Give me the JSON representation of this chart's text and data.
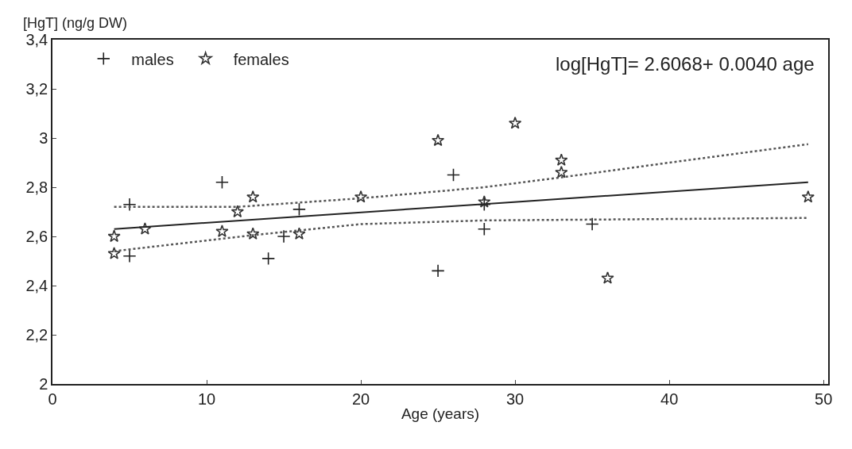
{
  "chart_data": {
    "type": "scatter",
    "xlabel": "Age (years)",
    "ylabel": "[HgT] (ng/g DW)",
    "annotations": [
      "log[HgT]= 2.6068+ 0.0040 age"
    ],
    "xlim": [
      0,
      50.3
    ],
    "xticks": [
      0,
      10,
      20,
      30,
      40,
      50
    ],
    "ylim": [
      2,
      3.4
    ],
    "yticks": [
      2,
      {
        "value": 2.2,
        "label": "2,2"
      },
      {
        "value": 2.4,
        "label": "2,4"
      },
      {
        "value": 2.6,
        "label": "2,6"
      },
      {
        "value": 2.8,
        "label": "2,8"
      },
      3,
      {
        "value": 3.2,
        "label": "3,2"
      },
      {
        "value": 3.4,
        "label": "3,4"
      }
    ],
    "legend": "top left",
    "series": [
      {
        "name": "males",
        "marker": "cross",
        "color": "#222222",
        "x": [
          5,
          5,
          11,
          14,
          15,
          16,
          25,
          26,
          28,
          28,
          35
        ],
        "values": [
          2.73,
          2.52,
          2.82,
          2.51,
          2.6,
          2.71,
          2.46,
          2.85,
          2.63,
          2.73,
          2.65
        ]
      },
      {
        "name": "females",
        "marker": "star",
        "color": "#333333",
        "x": [
          4,
          4,
          6,
          11,
          12,
          13,
          13,
          16,
          20,
          25,
          28,
          30,
          33,
          33,
          36,
          49
        ],
        "values": [
          2.6,
          2.53,
          2.63,
          2.62,
          2.7,
          2.76,
          2.61,
          2.61,
          2.76,
          2.99,
          2.74,
          3.06,
          2.91,
          2.86,
          2.43,
          2.76
        ]
      },
      {
        "type": "line",
        "marker": "none",
        "line_style": "solid",
        "color": "#222222",
        "x": [
          4,
          49
        ],
        "values": [
          2.63,
          2.82
        ]
      },
      {
        "type": "line",
        "marker": "none",
        "line_style": "dotted",
        "color": "#555555",
        "x": [
          4,
          12,
          20,
          28,
          33,
          40,
          49
        ],
        "values": [
          2.72,
          2.72,
          2.755,
          2.8,
          2.84,
          2.9,
          2.975
        ]
      },
      {
        "type": "line",
        "marker": "none",
        "line_style": "dotted",
        "color": "#555555",
        "x": [
          4,
          13,
          20,
          28,
          49
        ],
        "values": [
          2.54,
          2.605,
          2.65,
          2.665,
          2.675
        ]
      }
    ]
  }
}
